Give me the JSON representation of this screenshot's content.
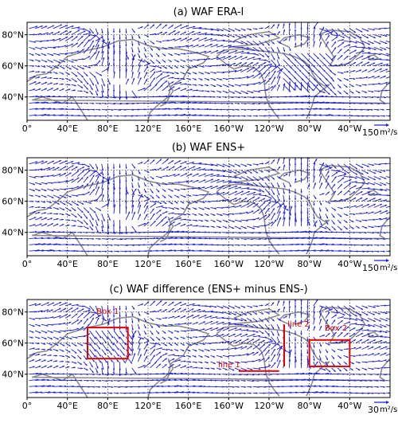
{
  "chart_data": [
    {
      "type": "vector_field_map",
      "title": "(a) WAF ERA-I",
      "x_ticks": [
        "0°",
        "40°E",
        "80°E",
        "120°E",
        "160°E",
        "160°W",
        "120°W",
        "80°W",
        "40°W"
      ],
      "y_ticks": [
        "80°N",
        "60°N",
        "40°N"
      ],
      "lon_range": [
        0,
        360
      ],
      "lat_range": [
        25,
        88
      ],
      "gridlines": true,
      "reference_vector": {
        "value": "150",
        "unit": "m²/s²"
      },
      "arrow_color": "#1f1fd6",
      "coast_color": "#8c8c8c"
    },
    {
      "type": "vector_field_map",
      "title": "(b) WAF ENS+",
      "x_ticks": [
        "0°",
        "40°E",
        "80°E",
        "120°E",
        "160°E",
        "160°W",
        "120°W",
        "80°W",
        "40°W"
      ],
      "y_ticks": [
        "80°N",
        "60°N",
        "40°N"
      ],
      "lon_range": [
        0,
        360
      ],
      "lat_range": [
        25,
        88
      ],
      "gridlines": true,
      "reference_vector": {
        "value": "150",
        "unit": "m²/s²"
      },
      "arrow_color": "#1f1fd6",
      "coast_color": "#8c8c8c"
    },
    {
      "type": "vector_field_map",
      "title": "(c) WAF difference (ENS+ minus ENS-)",
      "x_ticks": [
        "0°",
        "40°E",
        "80°E",
        "120°E",
        "160°E",
        "160°W",
        "120°W",
        "80°W",
        "40°W"
      ],
      "y_ticks": [
        "80°N",
        "60°N",
        "40°N"
      ],
      "lon_range": [
        0,
        360
      ],
      "lat_range": [
        25,
        88
      ],
      "gridlines": true,
      "reference_vector": {
        "value": "30",
        "unit": "m²/s²"
      },
      "arrow_color": "#1f1fd6",
      "coast_color": "#8c8c8c",
      "annotation_color": "#e00000",
      "annotations": [
        {
          "label": "Box 1",
          "kind": "box",
          "lon": [
            60,
            100
          ],
          "lat": [
            50,
            70
          ]
        },
        {
          "label": "Box 2",
          "kind": "box",
          "lon": [
            280,
            320
          ],
          "lat": [
            45,
            62
          ]
        },
        {
          "label": "line 1",
          "kind": "hline",
          "lon": [
            210,
            250
          ],
          "lat": 42
        },
        {
          "label": "line 2",
          "kind": "vline",
          "lon": 255,
          "lat": [
            45,
            72
          ]
        }
      ]
    }
  ]
}
